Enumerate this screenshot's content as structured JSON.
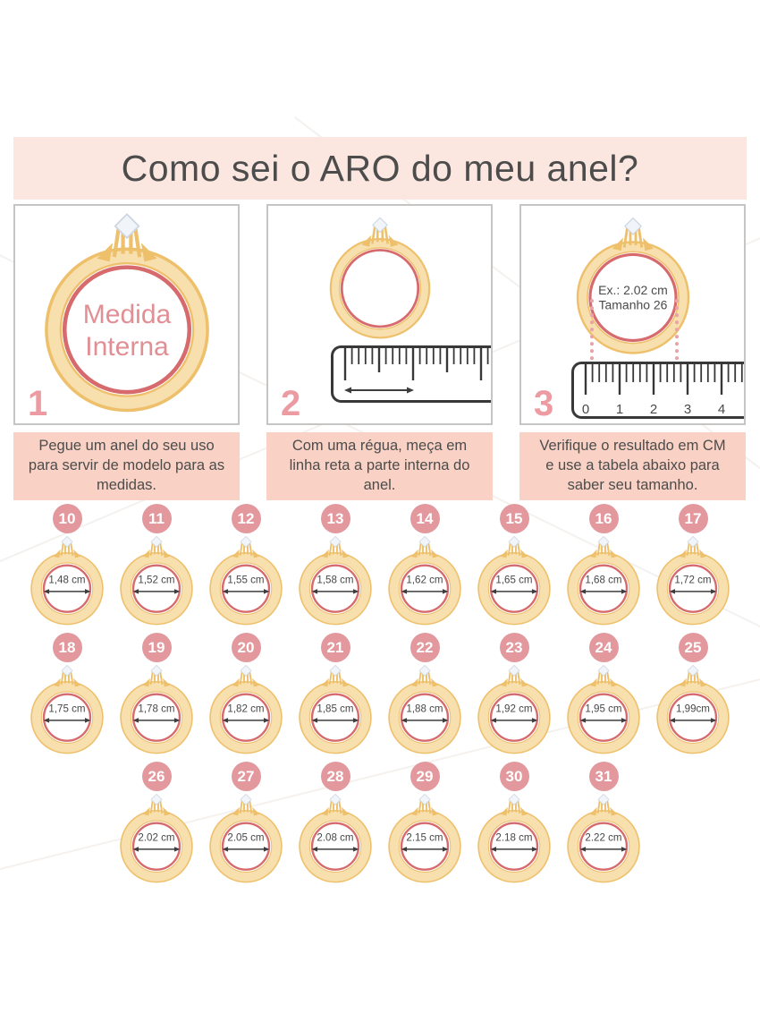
{
  "title": {
    "text": "Como sei o ARO do meu anel?"
  },
  "steps": [
    {
      "number": "1",
      "caption": "Pegue um anel do seu uso para servir de modelo para as medidas.",
      "ring_label": [
        "Medida",
        "Interna"
      ]
    },
    {
      "number": "2",
      "caption": "Com uma régua, meça em linha reta a parte interna do anel."
    },
    {
      "number": "3",
      "caption": "Verifique o resultado em CM e use a tabela abaixo para saber seu tamanho.",
      "ring_label": [
        "Ex.: 2.02 cm",
        "Tamanho 26"
      ],
      "ruler_numbers": [
        "0",
        "1",
        "2",
        "3",
        "4"
      ]
    }
  ],
  "size_chart": {
    "rows": [
      [
        {
          "size": "10",
          "measure": "1,48 cm"
        },
        {
          "size": "11",
          "measure": "1,52 cm"
        },
        {
          "size": "12",
          "measure": "1,55 cm"
        },
        {
          "size": "13",
          "measure": "1,58 cm"
        },
        {
          "size": "14",
          "measure": "1,62 cm"
        },
        {
          "size": "15",
          "measure": "1,65 cm"
        },
        {
          "size": "16",
          "measure": "1,68 cm"
        },
        {
          "size": "17",
          "measure": "1,72 cm"
        }
      ],
      [
        {
          "size": "18",
          "measure": "1,75 cm"
        },
        {
          "size": "19",
          "measure": "1,78 cm"
        },
        {
          "size": "20",
          "measure": "1,82 cm"
        },
        {
          "size": "21",
          "measure": "1,85 cm"
        },
        {
          "size": "22",
          "measure": "1,88 cm"
        },
        {
          "size": "23",
          "measure": "1,92 cm"
        },
        {
          "size": "24",
          "measure": "1,95 cm"
        },
        {
          "size": "25",
          "measure": "1,99cm"
        }
      ],
      [
        {
          "size": "26",
          "measure": "2.02 cm"
        },
        {
          "size": "27",
          "measure": "2.05 cm"
        },
        {
          "size": "28",
          "measure": "2.08 cm"
        },
        {
          "size": "29",
          "measure": "2.15 cm"
        },
        {
          "size": "30",
          "measure": "2.18 cm"
        },
        {
          "size": "31",
          "measure": "2.22 cm"
        }
      ]
    ]
  },
  "colors": {
    "title_band_bg": "#fbe7df",
    "caption_bg": "#f9d2c5",
    "badge_pink": "#e2989c",
    "step_number_pink": "#eb9ba1",
    "ring_gold_fill": "#f7dfae",
    "ring_gold_outline": "#eec06b",
    "ring_inner_pink": "#d66a6d",
    "label_pink": "#e18f94",
    "text_dark": "#4a4a4a",
    "ruler_ink": "#383838"
  }
}
